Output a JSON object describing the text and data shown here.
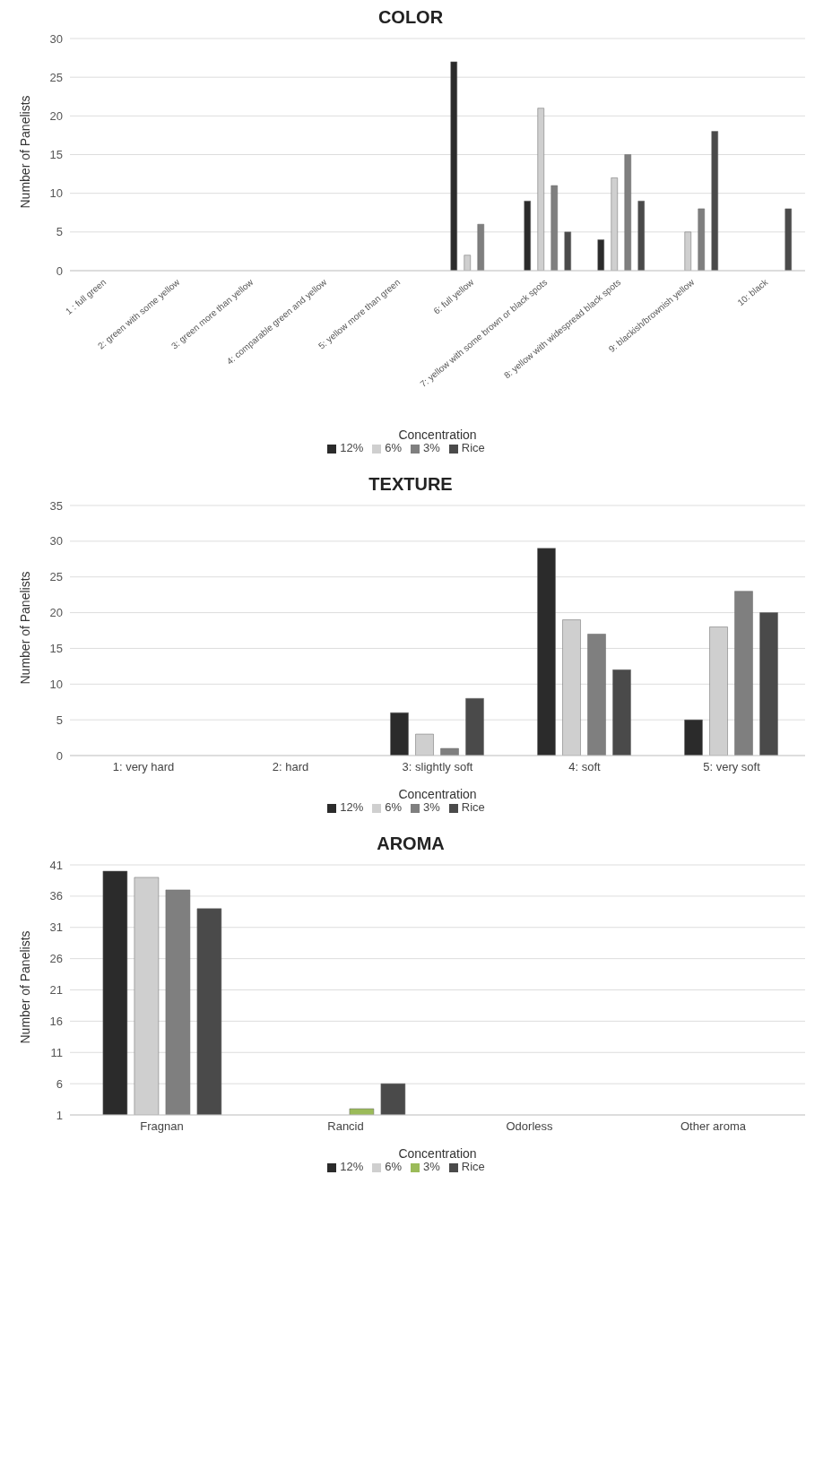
{
  "chart_data": [
    {
      "type": "bar",
      "title": "COLOR",
      "xlabel": "Concentration",
      "ylabel": "Number of Panelists",
      "categories": [
        "1 : full green",
        "2: green with some yellow",
        "3: green more than yellow",
        "4: comparable green and yellow",
        "5: yellow more than green",
        "6: full yellow",
        "7: yellow with some brown or black spots",
        "8: yellow with widespread black spots",
        "9: blackish/brownish yellow",
        "10: black"
      ],
      "series": [
        {
          "name": "12%",
          "color": "#2b2b2b",
          "values": [
            0,
            0,
            0,
            0,
            0,
            27,
            9,
            4,
            0,
            0
          ]
        },
        {
          "name": "6%",
          "color": "#cfcfcf",
          "values": [
            0,
            0,
            0,
            0,
            0,
            2,
            21,
            12,
            5,
            0
          ]
        },
        {
          "name": "3%",
          "color": "#7f7f7f",
          "values": [
            0,
            0,
            0,
            0,
            0,
            6,
            11,
            15,
            8,
            0
          ]
        },
        {
          "name": "Rice",
          "color": "#4a4a4a",
          "values": [
            0,
            0,
            0,
            0,
            0,
            0,
            5,
            9,
            18,
            8
          ]
        }
      ],
      "ylim": [
        0,
        30
      ],
      "yticks": [
        0,
        5,
        10,
        15,
        20,
        25,
        30
      ],
      "grid": "y",
      "legend": "bottom"
    },
    {
      "type": "bar",
      "title": "TEXTURE",
      "xlabel": "Concentration",
      "ylabel": "Number of Panelists",
      "categories": [
        "1: very hard",
        "2: hard",
        "3: slightly soft",
        "4: soft",
        "5: very soft"
      ],
      "series": [
        {
          "name": "12%",
          "color": "#2b2b2b",
          "values": [
            0,
            0,
            6,
            29,
            5
          ]
        },
        {
          "name": "6%",
          "color": "#cfcfcf",
          "values": [
            0,
            0,
            3,
            19,
            18
          ]
        },
        {
          "name": "3%",
          "color": "#7f7f7f",
          "values": [
            0,
            0,
            1,
            17,
            23
          ]
        },
        {
          "name": "Rice",
          "color": "#4a4a4a",
          "values": [
            0,
            0,
            8,
            12,
            20
          ]
        }
      ],
      "ylim": [
        0,
        35
      ],
      "yticks": [
        0,
        5,
        10,
        15,
        20,
        25,
        30,
        35
      ],
      "grid": "y",
      "legend": "bottom"
    },
    {
      "type": "bar",
      "title": "AROMA",
      "xlabel": "Concentration",
      "ylabel": "Number of Panelists",
      "categories": [
        "Fragnan",
        "Rancid",
        "Odorless",
        "Other aroma"
      ],
      "series": [
        {
          "name": "12%",
          "color": "#2b2b2b",
          "values": [
            40,
            null,
            null,
            null
          ]
        },
        {
          "name": "6%",
          "color": "#cfcfcf",
          "values": [
            39,
            null,
            null,
            null
          ]
        },
        {
          "name": "3%",
          "color": "#9bbb59",
          "colors": [
            "#7f7f7f",
            "#9bbb59",
            "#9bbb59",
            "#9bbb59"
          ],
          "values": [
            37,
            2,
            null,
            null
          ]
        },
        {
          "name": "Rice",
          "color": "#4a4a4a",
          "values": [
            34,
            6,
            null,
            null
          ]
        }
      ],
      "ylim": [
        1,
        41
      ],
      "yticks": [
        1,
        6,
        11,
        16,
        21,
        26,
        31,
        36,
        41
      ],
      "grid": "y",
      "legend": "bottom"
    }
  ]
}
